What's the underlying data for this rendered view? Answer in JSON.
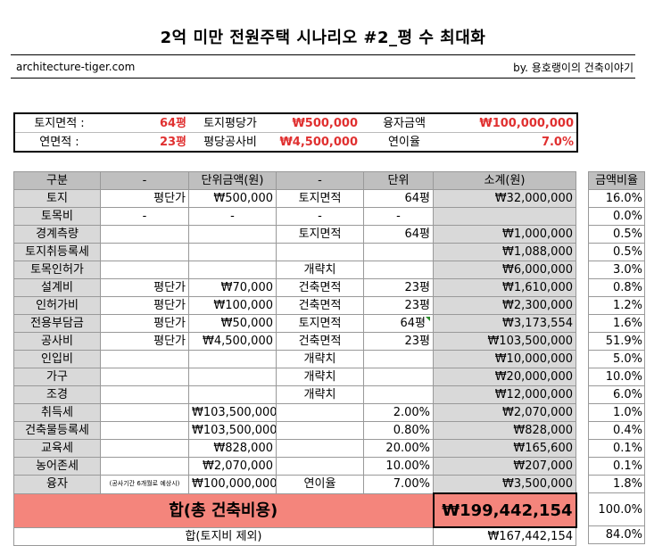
{
  "title": "2억 미만 전원주택 시나리오 #2_평 수 최대화",
  "site": "architecture-tiger.com",
  "byline": "by. 용호랭이의 건축이야기",
  "summary": {
    "row1": {
      "land_area_label": "토지면적 :",
      "land_area_value": "64평",
      "land_price_label": "토지평당가",
      "land_price_value": "₩500,000",
      "loan_label": "융자금액",
      "loan_value": "₩100,000,000"
    },
    "row2": {
      "floor_area_label": "연면적 :",
      "floor_area_value": "23평",
      "build_cost_label": "평당공사비",
      "build_cost_value": "₩4,500,000",
      "interest_label": "연이율",
      "interest_value": "7.0%"
    }
  },
  "table": {
    "headers": [
      "구분",
      "-",
      "단위금액(원)",
      "-",
      "단위",
      "소계(원)"
    ],
    "rows": [
      {
        "cat": "토지",
        "a": "평단가",
        "unit_price": "₩500,000",
        "b": "토지면적",
        "unit": "64평",
        "subtotal": "₩32,000,000"
      },
      {
        "cat": "토목비",
        "a": "-",
        "unit_price": "-",
        "b": "-",
        "unit": "-",
        "subtotal": ""
      },
      {
        "cat": "경계측량",
        "a": "",
        "unit_price": "",
        "b": "토지면적",
        "unit": "64평",
        "subtotal": "₩1,000,000"
      },
      {
        "cat": "토지취등록세",
        "a": "",
        "unit_price": "",
        "b": "",
        "unit": "",
        "subtotal": "₩1,088,000"
      },
      {
        "cat": "토목인허가",
        "a": "",
        "unit_price": "",
        "b": "개략치",
        "unit": "",
        "subtotal": "₩6,000,000"
      },
      {
        "cat": "설계비",
        "a": "평단가",
        "unit_price": "₩70,000",
        "b": "건축면적",
        "unit": "23평",
        "subtotal": "₩1,610,000"
      },
      {
        "cat": "인허가비",
        "a": "평단가",
        "unit_price": "₩100,000",
        "b": "건축면적",
        "unit": "23평",
        "subtotal": "₩2,300,000"
      },
      {
        "cat": "전용부담금",
        "a": "평단가",
        "unit_price": "₩50,000",
        "b": "토지면적",
        "unit": "64평",
        "subtotal": "₩3,173,554"
      },
      {
        "cat": "공사비",
        "a": "평단가",
        "unit_price": "₩4,500,000",
        "b": "건축면적",
        "unit": "23평",
        "subtotal": "₩103,500,000"
      },
      {
        "cat": "인입비",
        "a": "",
        "unit_price": "",
        "b": "개략치",
        "unit": "",
        "subtotal": "₩10,000,000"
      },
      {
        "cat": "가구",
        "a": "",
        "unit_price": "",
        "b": "개략치",
        "unit": "",
        "subtotal": "₩20,000,000"
      },
      {
        "cat": "조경",
        "a": "",
        "unit_price": "",
        "b": "개략치",
        "unit": "",
        "subtotal": "₩12,000,000"
      },
      {
        "cat": "취득세",
        "a": "",
        "unit_price": "₩103,500,000",
        "b": "",
        "unit": "2.00%",
        "subtotal": "₩2,070,000"
      },
      {
        "cat": "건축물등록세",
        "a": "",
        "unit_price": "₩103,500,000",
        "b": "",
        "unit": "0.80%",
        "subtotal": "₩828,000"
      },
      {
        "cat": "교육세",
        "a": "",
        "unit_price": "₩828,000",
        "b": "",
        "unit": "20.00%",
        "subtotal": "₩165,600"
      },
      {
        "cat": "농어존세",
        "a": "",
        "unit_price": "₩2,070,000",
        "b": "",
        "unit": "10.00%",
        "subtotal": "₩207,000"
      },
      {
        "cat": "융자",
        "a": "(공사기간 6개월로 예상시)",
        "unit_price": "₩100,000,000",
        "b": "연이율",
        "unit": "7.00%",
        "subtotal": "₩3,500,000"
      }
    ],
    "total_label": "합(총 건축비용)",
    "total_value": "₩199,442,154",
    "total_excl_label": "합(토지비 제외)",
    "total_excl_value": "₩167,442,154"
  },
  "ratio": {
    "header": "금액비율",
    "values": [
      "16.0%",
      "0.0%",
      "0.5%",
      "0.5%",
      "3.0%",
      "0.8%",
      "1.2%",
      "1.6%",
      "51.9%",
      "5.0%",
      "10.0%",
      "6.0%",
      "1.0%",
      "0.4%",
      "0.1%",
      "0.1%",
      "1.8%"
    ],
    "total": "100.0%",
    "total_excl": "84.0%"
  },
  "colors": {
    "total_fill": "#f4857c",
    "header_fill": "#bfbfbf",
    "value_red": "#e03030"
  }
}
